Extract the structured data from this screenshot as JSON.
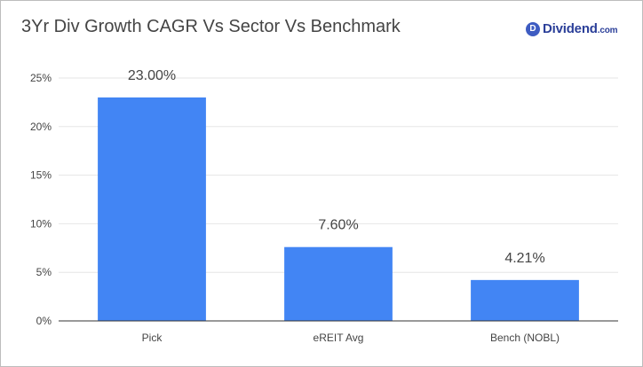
{
  "header": {
    "title": "3Yr Div Growth CAGR Vs Sector Vs Benchmark",
    "logo_badge": "D",
    "logo_name": "Dividend",
    "logo_domain": ".com"
  },
  "colors": {
    "bar": "#4285f4",
    "grid": "#e6e6e6",
    "axis": "#333333",
    "label": "#444444"
  },
  "chart_data": {
    "type": "bar",
    "title": "3Yr Div Growth CAGR Vs Sector Vs Benchmark",
    "categories": [
      "Pick",
      "eREIT Avg",
      "Bench (NOBL)"
    ],
    "values": [
      23.0,
      7.6,
      4.21
    ],
    "data_labels": [
      "23.00%",
      "7.60%",
      "4.21%"
    ],
    "ylim": [
      0,
      25
    ],
    "yticks": [
      0,
      5,
      10,
      15,
      20,
      25
    ],
    "ytick_labels": [
      "0%",
      "5%",
      "10%",
      "15%",
      "20%",
      "25%"
    ],
    "xlabel": "",
    "ylabel": "",
    "grid": true,
    "legend": "none"
  }
}
